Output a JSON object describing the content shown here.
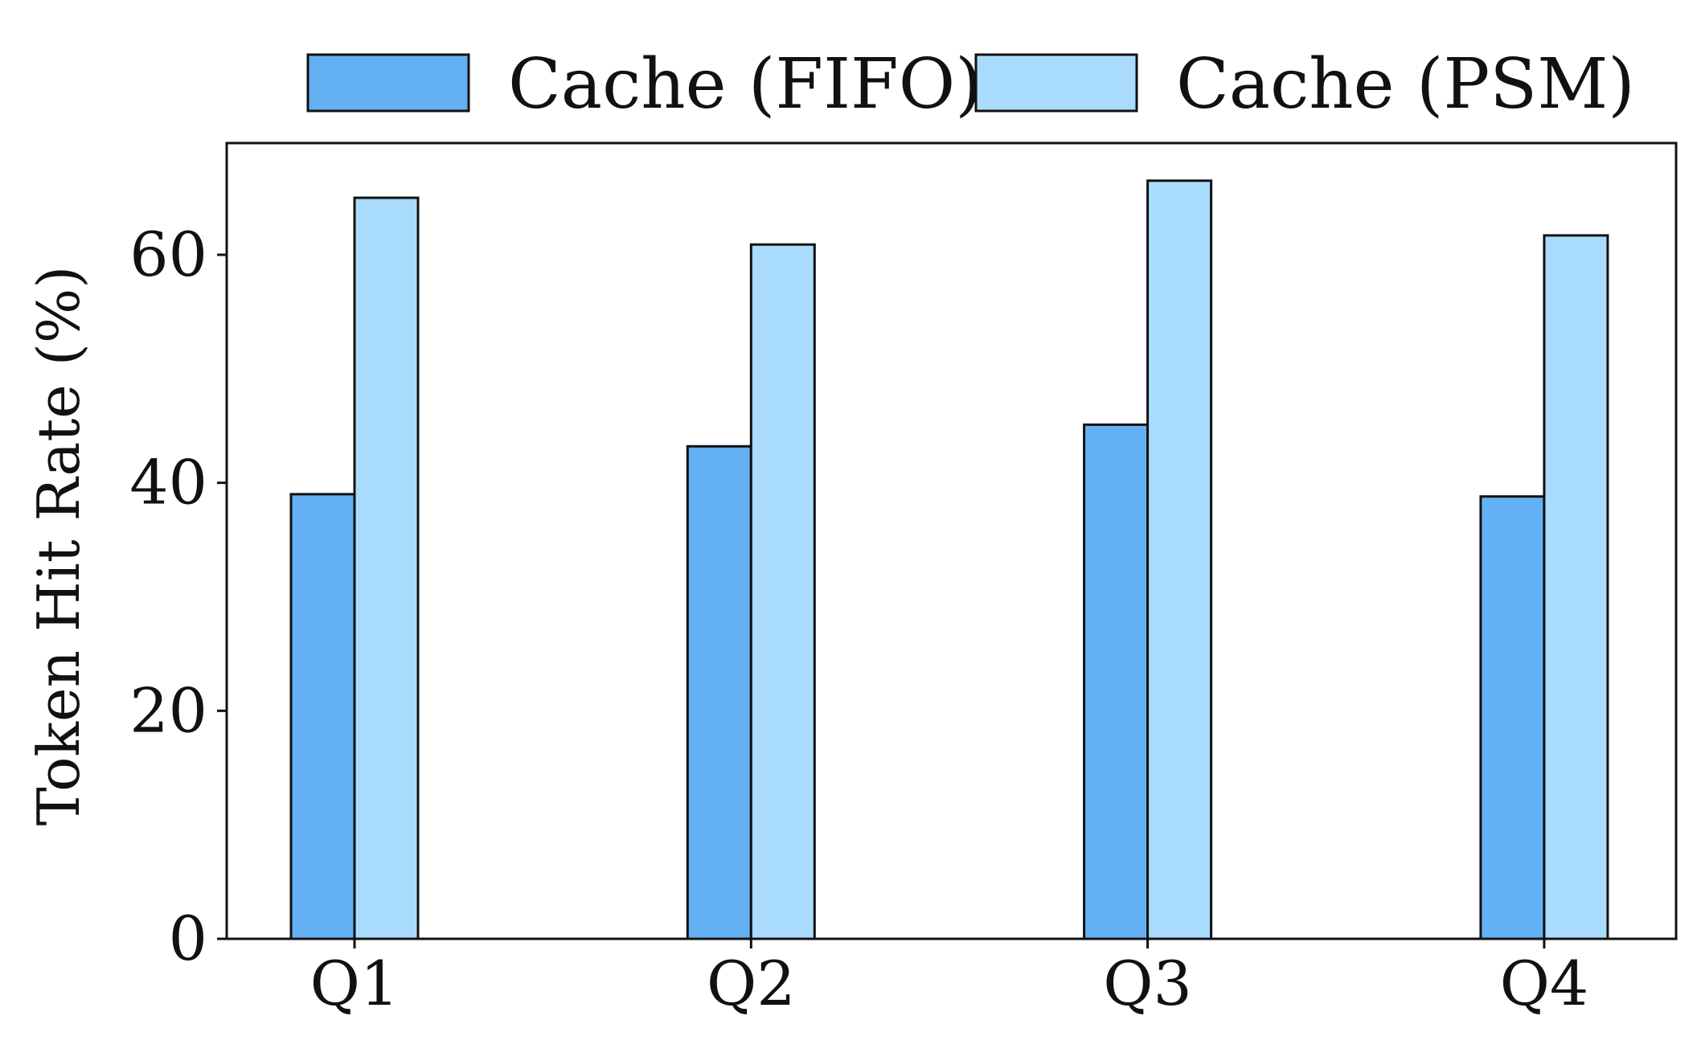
{
  "chart_data": {
    "type": "bar",
    "title": "",
    "xlabel": "",
    "ylabel": "Token Hit Rate (%)",
    "categories": [
      "Q1",
      "Q2",
      "Q3",
      "Q4"
    ],
    "series": [
      {
        "name": "Cache (FIFO)",
        "values": [
          39.0,
          43.2,
          45.1,
          38.8
        ],
        "color": "#64b0f4"
      },
      {
        "name": "Cache (PSM)",
        "values": [
          65.0,
          60.9,
          66.5,
          61.7
        ],
        "color": "#a9dcfc"
      }
    ],
    "ylim": [
      0,
      69.8
    ],
    "yticks": [
      0,
      20,
      40,
      60
    ],
    "ytick_labels": [
      "0",
      "20",
      "40",
      "60"
    ],
    "grid": false,
    "legend_position": "top-center, outside plot"
  }
}
